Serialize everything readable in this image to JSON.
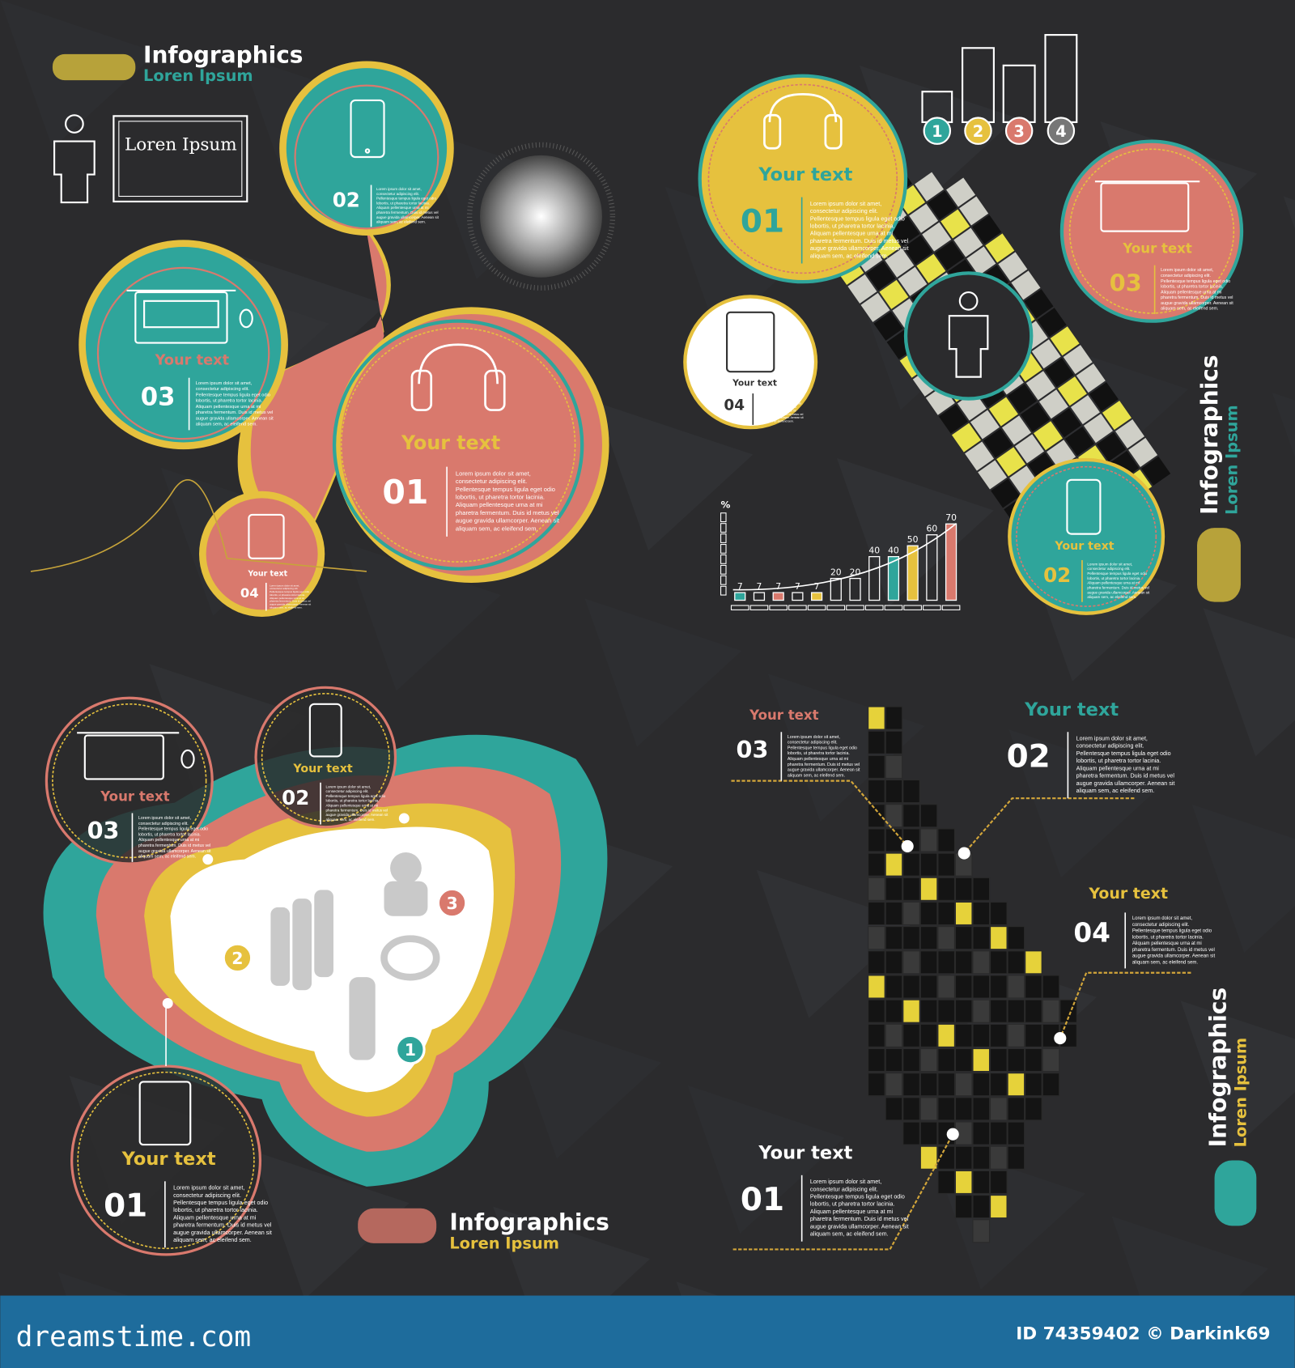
{
  "colors": {
    "background": "#2b2b2d",
    "teal": "#2fa59b",
    "pink": "#d9796d",
    "yellow": "#e6c13e",
    "white": "#ffffff",
    "footer": "#1e6c9c"
  },
  "body_lines": [
    "Lorem ipsum dolor sit amet,",
    "consectetur adipiscing elit.",
    "Pellentesque tempus ligula eget odio",
    "lobortis, ut pharetra tortor lacinia.",
    "Aliquam pellentesque urna at mi",
    "pharetra fermentum. Duis id metus vel",
    "augue gravida ullamcorper. Aenean sit",
    "aliquam sem, ac eleifend sem."
  ],
  "q1": {
    "title": "Infographics",
    "subtitle": "Loren Ipsum",
    "sign": "Loren Ipsum",
    "items": [
      {
        "num": "01",
        "label": "Your text"
      },
      {
        "num": "02",
        "label": ""
      },
      {
        "num": "03",
        "label": "Your text"
      },
      {
        "num": "04",
        "label": "Your text"
      }
    ]
  },
  "q2": {
    "title": "Infographics",
    "subtitle": "Loren Ipsum",
    "steps": [
      "1",
      "2",
      "3",
      "4"
    ],
    "items": [
      {
        "num": "01",
        "label": "Your text"
      },
      {
        "num": "02",
        "label": "Your text"
      },
      {
        "num": "03",
        "label": "Your text"
      },
      {
        "num": "04",
        "label": "Your text"
      }
    ]
  },
  "chart_data": {
    "type": "bar",
    "ylabel": "%",
    "values": [
      7,
      7,
      7,
      7,
      7,
      20,
      20,
      40,
      40,
      50,
      60,
      70
    ],
    "fills": [
      "teal",
      "none",
      "pink",
      "none",
      "yellow",
      "none",
      "none",
      "none",
      "teal",
      "yellow",
      "none",
      "pink"
    ],
    "ylim": [
      0,
      80
    ]
  },
  "q3": {
    "title": "Infographics",
    "subtitle": "Loren Ipsum",
    "badges": [
      "1",
      "2",
      "3"
    ],
    "items": [
      {
        "num": "01",
        "label": "Your text"
      },
      {
        "num": "02",
        "label": "Your text"
      },
      {
        "num": "03",
        "label": "Your text"
      }
    ]
  },
  "q4": {
    "title": "Infographics",
    "subtitle": "Loren Ipsum",
    "items": [
      {
        "num": "01",
        "label": "Your text"
      },
      {
        "num": "02",
        "label": "Your text"
      },
      {
        "num": "03",
        "label": "Your text"
      },
      {
        "num": "04",
        "label": "Your text"
      }
    ]
  },
  "footer": {
    "brand": "dreamstime.com",
    "credit": "ID 74359402 © Darkink69"
  }
}
